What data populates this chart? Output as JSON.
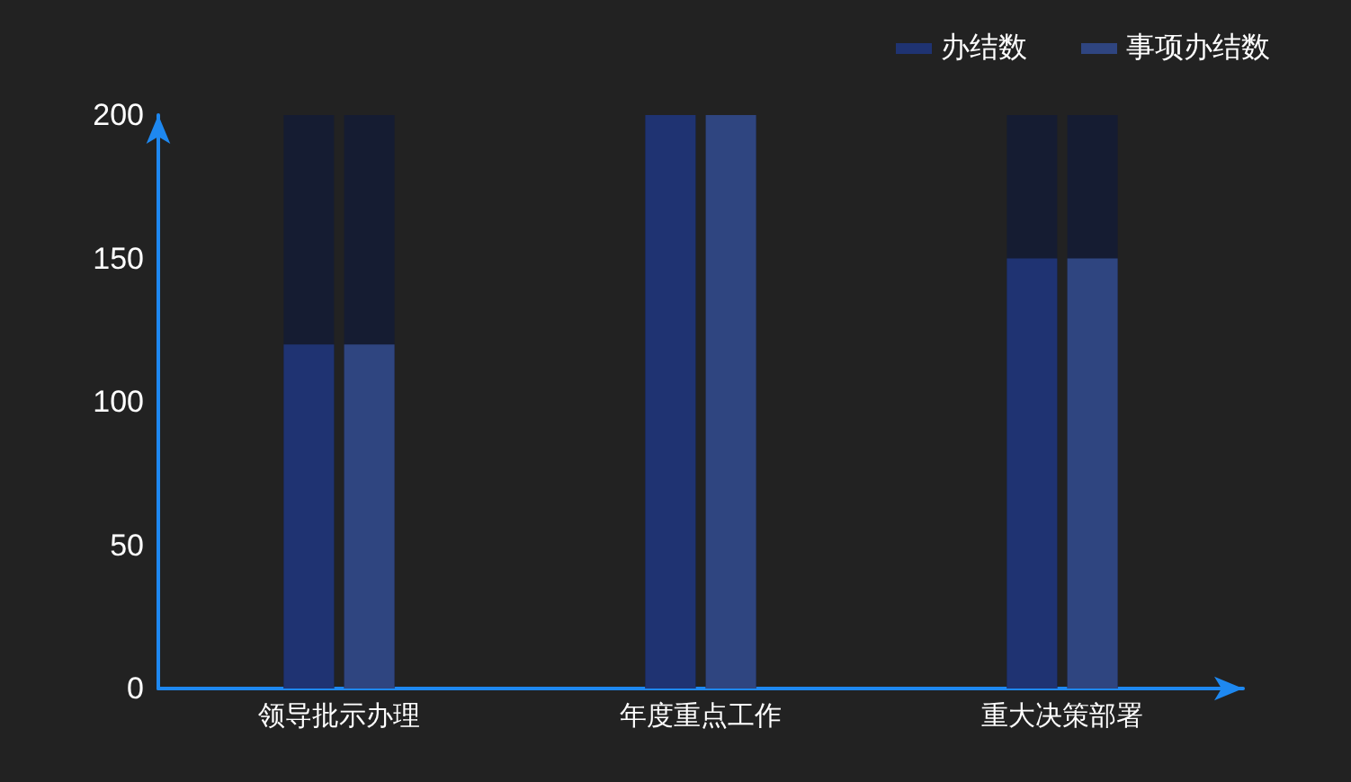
{
  "chart_data": {
    "type": "bar",
    "categories": [
      "领导批示办理",
      "年度重点工作",
      "重大决策部署"
    ],
    "series": [
      {
        "name": "办结数",
        "color": "#1f3372",
        "values": [
          120,
          200,
          150
        ]
      },
      {
        "name": "事项办结数",
        "color": "#2f4580",
        "values": [
          120,
          200,
          150
        ]
      }
    ],
    "ylim": [
      0,
      200
    ],
    "yticks": [
      0,
      50,
      100,
      150,
      200
    ],
    "grid": false,
    "legend": "top right"
  }
}
